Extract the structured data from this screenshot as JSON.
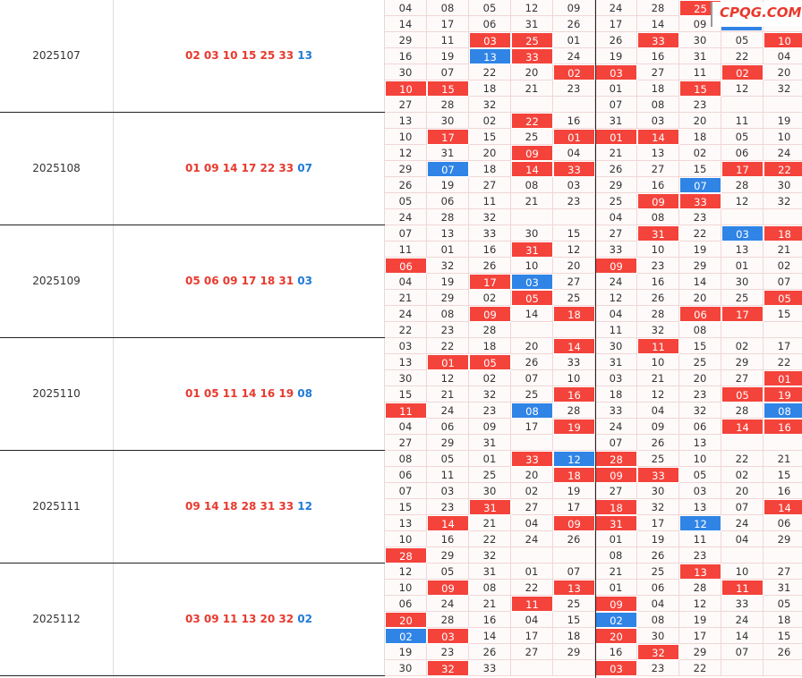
{
  "logo": "CPQG.COM",
  "periods": [
    {
      "period": "2025107",
      "red": "02 03 10 15 25 33",
      "blue": "13",
      "grid": [
        [
          "04",
          "08",
          "05",
          "12",
          "09",
          "24",
          "28",
          {
            "v": "25",
            "h": "r"
          },
          null,
          null
        ],
        [
          "14",
          "17",
          "06",
          "31",
          "26",
          "17",
          "14",
          "09",
          null,
          null
        ],
        [
          "29",
          "11",
          {
            "v": "03",
            "h": "r"
          },
          {
            "v": "25",
            "h": "r"
          },
          "01",
          "26",
          {
            "v": "33",
            "h": "r"
          },
          "30",
          "05",
          {
            "v": "10",
            "h": "r"
          }
        ],
        [
          "16",
          "19",
          {
            "v": "13",
            "h": "b"
          },
          {
            "v": "33",
            "h": "r"
          },
          "24",
          "19",
          "16",
          "31",
          "22",
          "04"
        ],
        [
          "30",
          "07",
          "22",
          "20",
          {
            "v": "02",
            "h": "r"
          },
          {
            "v": "03",
            "h": "r"
          },
          "27",
          "11",
          {
            "v": "02",
            "h": "r"
          },
          "20"
        ],
        [
          {
            "v": "10",
            "h": "r"
          },
          {
            "v": "15",
            "h": "r"
          },
          "18",
          "21",
          "23",
          "01",
          "18",
          {
            "v": "15",
            "h": "r"
          },
          "12",
          "32"
        ],
        [
          "27",
          "28",
          "32",
          null,
          null,
          "07",
          "08",
          "23",
          null,
          null
        ]
      ]
    },
    {
      "period": "2025108",
      "red": "01 09 14 17 22 33",
      "blue": "07",
      "grid": [
        [
          "13",
          "30",
          "02",
          {
            "v": "22",
            "h": "r"
          },
          "16",
          "31",
          "03",
          "20",
          "11",
          "19"
        ],
        [
          "10",
          {
            "v": "17",
            "h": "r"
          },
          "15",
          "25",
          {
            "v": "01",
            "h": "r"
          },
          {
            "v": "01",
            "h": "r"
          },
          {
            "v": "14",
            "h": "r"
          },
          "18",
          "05",
          "10"
        ],
        [
          "12",
          "31",
          "20",
          {
            "v": "09",
            "h": "r"
          },
          "04",
          "21",
          "13",
          "02",
          "06",
          "24"
        ],
        [
          "29",
          {
            "v": "07",
            "h": "b"
          },
          "18",
          {
            "v": "14",
            "h": "r"
          },
          {
            "v": "33",
            "h": "r"
          },
          "26",
          "27",
          "15",
          {
            "v": "17",
            "h": "r"
          },
          {
            "v": "22",
            "h": "r"
          }
        ],
        [
          "26",
          "19",
          "27",
          "08",
          "03",
          "29",
          "16",
          {
            "v": "07",
            "h": "b"
          },
          "28",
          "30"
        ],
        [
          "05",
          "06",
          "11",
          "21",
          "23",
          "25",
          {
            "v": "09",
            "h": "r"
          },
          {
            "v": "33",
            "h": "r"
          },
          "12",
          "32"
        ],
        [
          "24",
          "28",
          "32",
          null,
          null,
          "04",
          "08",
          "23",
          null,
          null
        ]
      ]
    },
    {
      "period": "2025109",
      "red": "05 06 09 17 18 31",
      "blue": "03",
      "grid": [
        [
          "07",
          "13",
          "33",
          "30",
          "15",
          "27",
          {
            "v": "31",
            "h": "r"
          },
          "22",
          {
            "v": "03",
            "h": "b"
          },
          {
            "v": "18",
            "h": "r"
          }
        ],
        [
          "11",
          "01",
          "16",
          {
            "v": "31",
            "h": "r"
          },
          "12",
          "33",
          "10",
          "19",
          "13",
          "21"
        ],
        [
          {
            "v": "06",
            "h": "r"
          },
          "32",
          "26",
          "10",
          "20",
          {
            "v": "09",
            "h": "r"
          },
          "23",
          "29",
          "01",
          "02"
        ],
        [
          "04",
          "19",
          {
            "v": "17",
            "h": "r"
          },
          {
            "v": "03",
            "h": "b"
          },
          "27",
          "24",
          "16",
          "14",
          "30",
          "07"
        ],
        [
          "21",
          "29",
          "02",
          {
            "v": "05",
            "h": "r"
          },
          "25",
          "12",
          "26",
          "20",
          "25",
          {
            "v": "05",
            "h": "r"
          }
        ],
        [
          "24",
          "08",
          {
            "v": "09",
            "h": "r"
          },
          "14",
          {
            "v": "18",
            "h": "r"
          },
          "04",
          "28",
          {
            "v": "06",
            "h": "r"
          },
          {
            "v": "17",
            "h": "r"
          },
          "15"
        ],
        [
          "22",
          "23",
          "28",
          null,
          null,
          "11",
          "32",
          "08",
          null,
          null
        ]
      ]
    },
    {
      "period": "2025110",
      "red": "01 05 11 14 16 19",
      "blue": "08",
      "grid": [
        [
          "03",
          "22",
          "18",
          "20",
          {
            "v": "14",
            "h": "r"
          },
          "30",
          {
            "v": "11",
            "h": "r"
          },
          "15",
          "02",
          "17"
        ],
        [
          "13",
          {
            "v": "01",
            "h": "r"
          },
          {
            "v": "05",
            "h": "r"
          },
          "26",
          "33",
          "31",
          "10",
          "25",
          "29",
          "22"
        ],
        [
          "30",
          "12",
          "02",
          "07",
          "10",
          "03",
          "21",
          "20",
          "27",
          {
            "v": "01",
            "h": "r"
          }
        ],
        [
          "15",
          "21",
          "32",
          "25",
          {
            "v": "16",
            "h": "r"
          },
          "18",
          "12",
          "23",
          {
            "v": "05",
            "h": "r"
          },
          {
            "v": "19",
            "h": "r"
          }
        ],
        [
          {
            "v": "11",
            "h": "r"
          },
          "24",
          "23",
          {
            "v": "08",
            "h": "b"
          },
          "28",
          "33",
          "04",
          "32",
          "28",
          {
            "v": "08",
            "h": "b"
          }
        ],
        [
          "04",
          "06",
          "09",
          "17",
          {
            "v": "19",
            "h": "r"
          },
          "24",
          "09",
          "06",
          {
            "v": "14",
            "h": "r"
          },
          {
            "v": "16",
            "h": "r"
          }
        ],
        [
          "27",
          "29",
          "31",
          null,
          null,
          "07",
          "26",
          "13",
          null,
          null
        ]
      ]
    },
    {
      "period": "2025111",
      "red": "09 14 18 28 31 33",
      "blue": "12",
      "grid": [
        [
          "08",
          "05",
          "01",
          {
            "v": "33",
            "h": "r"
          },
          {
            "v": "12",
            "h": "b"
          },
          {
            "v": "28",
            "h": "r"
          },
          "25",
          "10",
          "22",
          "21"
        ],
        [
          "06",
          "11",
          "25",
          "20",
          {
            "v": "18",
            "h": "r"
          },
          {
            "v": "09",
            "h": "r"
          },
          {
            "v": "33",
            "h": "r"
          },
          "05",
          "02",
          "15"
        ],
        [
          "07",
          "03",
          "30",
          "02",
          "19",
          "27",
          "30",
          "03",
          "20",
          "16"
        ],
        [
          "15",
          "23",
          {
            "v": "31",
            "h": "r"
          },
          "27",
          "17",
          {
            "v": "18",
            "h": "r"
          },
          "32",
          "13",
          "07",
          {
            "v": "14",
            "h": "r"
          }
        ],
        [
          "13",
          {
            "v": "14",
            "h": "r"
          },
          "21",
          "04",
          {
            "v": "09",
            "h": "r"
          },
          {
            "v": "31",
            "h": "r"
          },
          "17",
          {
            "v": "12",
            "h": "b"
          },
          "24",
          "06"
        ],
        [
          "10",
          "16",
          "22",
          "24",
          "26",
          "01",
          "19",
          "11",
          "04",
          "29"
        ],
        [
          {
            "v": "28",
            "h": "r"
          },
          "29",
          "32",
          null,
          null,
          "08",
          "26",
          "23",
          null,
          null
        ]
      ]
    },
    {
      "period": "2025112",
      "red": "03 09 11 13 20 32",
      "blue": "02",
      "grid": [
        [
          "12",
          "05",
          "31",
          "01",
          "07",
          "21",
          "25",
          {
            "v": "13",
            "h": "r"
          },
          "10",
          "27"
        ],
        [
          "10",
          {
            "v": "09",
            "h": "r"
          },
          "08",
          "22",
          {
            "v": "13",
            "h": "r"
          },
          "01",
          "06",
          "28",
          {
            "v": "11",
            "h": "r"
          },
          "31"
        ],
        [
          "06",
          "24",
          "21",
          {
            "v": "11",
            "h": "r"
          },
          "25",
          {
            "v": "09",
            "h": "r"
          },
          "04",
          "12",
          "33",
          "05"
        ],
        [
          {
            "v": "20",
            "h": "r"
          },
          "28",
          "16",
          "04",
          "15",
          {
            "v": "02",
            "h": "b"
          },
          "08",
          "19",
          "24",
          "18"
        ],
        [
          {
            "v": "02",
            "h": "b"
          },
          {
            "v": "03",
            "h": "r"
          },
          "14",
          "17",
          "18",
          {
            "v": "20",
            "h": "r"
          },
          "30",
          "17",
          "14",
          "15"
        ],
        [
          "19",
          "23",
          "26",
          "27",
          "29",
          "16",
          {
            "v": "32",
            "h": "r"
          },
          "29",
          "07",
          "26"
        ],
        [
          "30",
          {
            "v": "32",
            "h": "r"
          },
          "33",
          null,
          null,
          {
            "v": "03",
            "h": "r"
          },
          "23",
          "22",
          null,
          null
        ]
      ]
    }
  ]
}
